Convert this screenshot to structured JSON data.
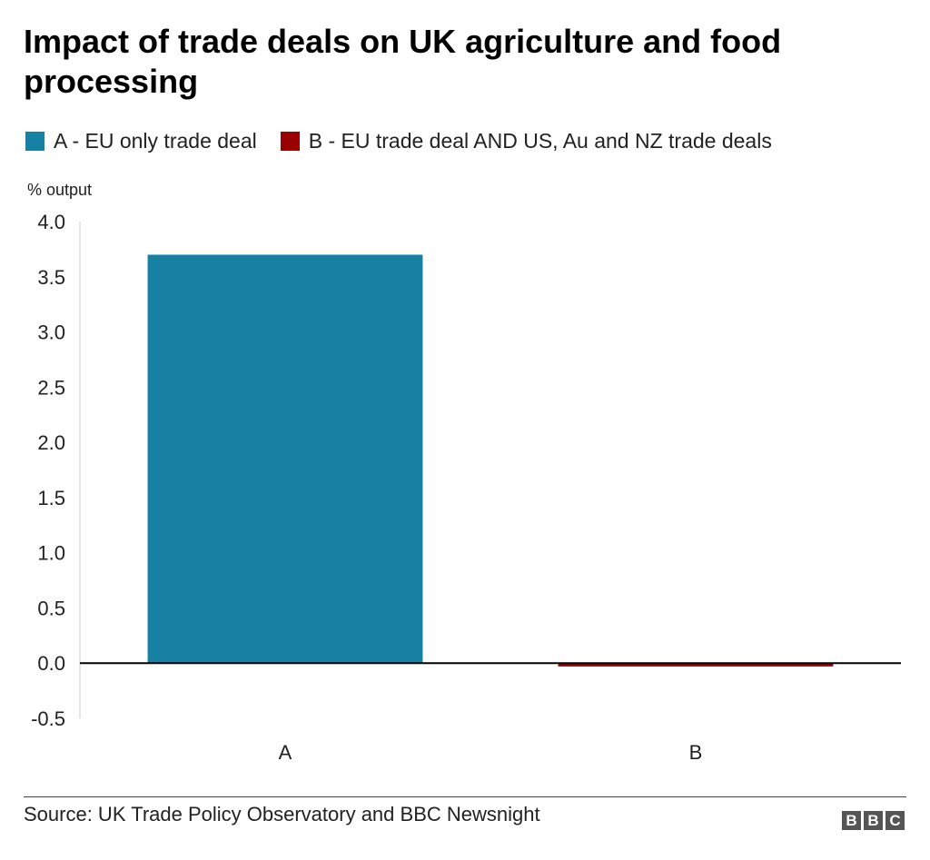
{
  "chart_data": {
    "type": "bar",
    "title": "Impact of trade deals on UK agriculture and food processing",
    "ylabel": "% output",
    "xlabel": "",
    "categories": [
      "A",
      "B"
    ],
    "values": [
      3.7,
      -0.03
    ],
    "colors": [
      "#1681a2",
      "#990000"
    ],
    "ylim": [
      -0.5,
      4.0
    ],
    "yticks": [
      "4.0",
      "3.5",
      "3.0",
      "2.5",
      "2.0",
      "1.5",
      "1.0",
      "0.5",
      "0.0",
      "-0.5"
    ],
    "ytick_values": [
      4.0,
      3.5,
      3.0,
      2.5,
      2.0,
      1.5,
      1.0,
      0.5,
      0.0,
      -0.5
    ],
    "legend": [
      {
        "label": "A - EU only trade deal",
        "color": "#1681a2"
      },
      {
        "label": "B - EU trade deal AND US, Au and NZ trade deals",
        "color": "#990000"
      }
    ],
    "legend_position": "top-left",
    "grid": false
  },
  "footer": {
    "source": "Source: UK Trade Policy Observatory and BBC Newsnight",
    "logo_letters": [
      "B",
      "B",
      "C"
    ]
  }
}
